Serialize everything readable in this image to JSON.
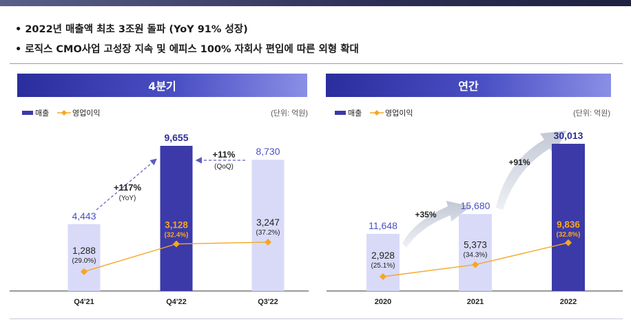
{
  "bullets": [
    "• 2022년 매출액 최초 3조원 돌파 (YoY 91% 성장)",
    "• 로직스 CMO사업 고성장 지속 및 에피스 100% 자회사 편입에 따른 외형 확대"
  ],
  "colors": {
    "bar_light": "#d9daf8",
    "bar_dark": "#3b3aa8",
    "line": "#f5a623",
    "value_blue": "#4a4fc4",
    "value_orange": "#f5a623"
  },
  "chart_data": [
    {
      "type": "bar",
      "title": "4분기",
      "unit": "(단위: 억원)",
      "legend": [
        "매출",
        "영업이익"
      ],
      "categories": [
        "Q4'21",
        "Q4'22",
        "Q3'22"
      ],
      "series": [
        {
          "name": "매출",
          "values": [
            4443,
            9655,
            8730
          ],
          "labels": [
            "4,443",
            "9,655",
            "8,730"
          ]
        },
        {
          "name": "영업이익",
          "values": [
            1288,
            3128,
            3247
          ],
          "labels": [
            "1,288",
            "3,128",
            "3,247"
          ],
          "margins": [
            "(29.0%)",
            "(32.4%)",
            "(37.2%)"
          ]
        }
      ],
      "annotations": [
        {
          "text": "+117%",
          "sub": "(YoY)"
        },
        {
          "text": "+11%",
          "sub": "(QoQ)"
        }
      ],
      "ylim": [
        0,
        10500
      ]
    },
    {
      "type": "bar",
      "title": "연간",
      "unit": "(단위: 억원)",
      "legend": [
        "매출",
        "영업이익"
      ],
      "categories": [
        "2020",
        "2021",
        "2022"
      ],
      "series": [
        {
          "name": "매출",
          "values": [
            11648,
            15680,
            30013
          ],
          "labels": [
            "11,648",
            "15,680",
            "30,013"
          ]
        },
        {
          "name": "영업이익",
          "values": [
            2928,
            5373,
            9836
          ],
          "labels": [
            "2,928",
            "5,373",
            "9,836"
          ],
          "margins": [
            "(25.1%)",
            "(34.3%)",
            "(32.8%)"
          ]
        }
      ],
      "annotations": [
        {
          "text": "+35%"
        },
        {
          "text": "+91%"
        }
      ],
      "ylim": [
        0,
        32500
      ]
    }
  ]
}
